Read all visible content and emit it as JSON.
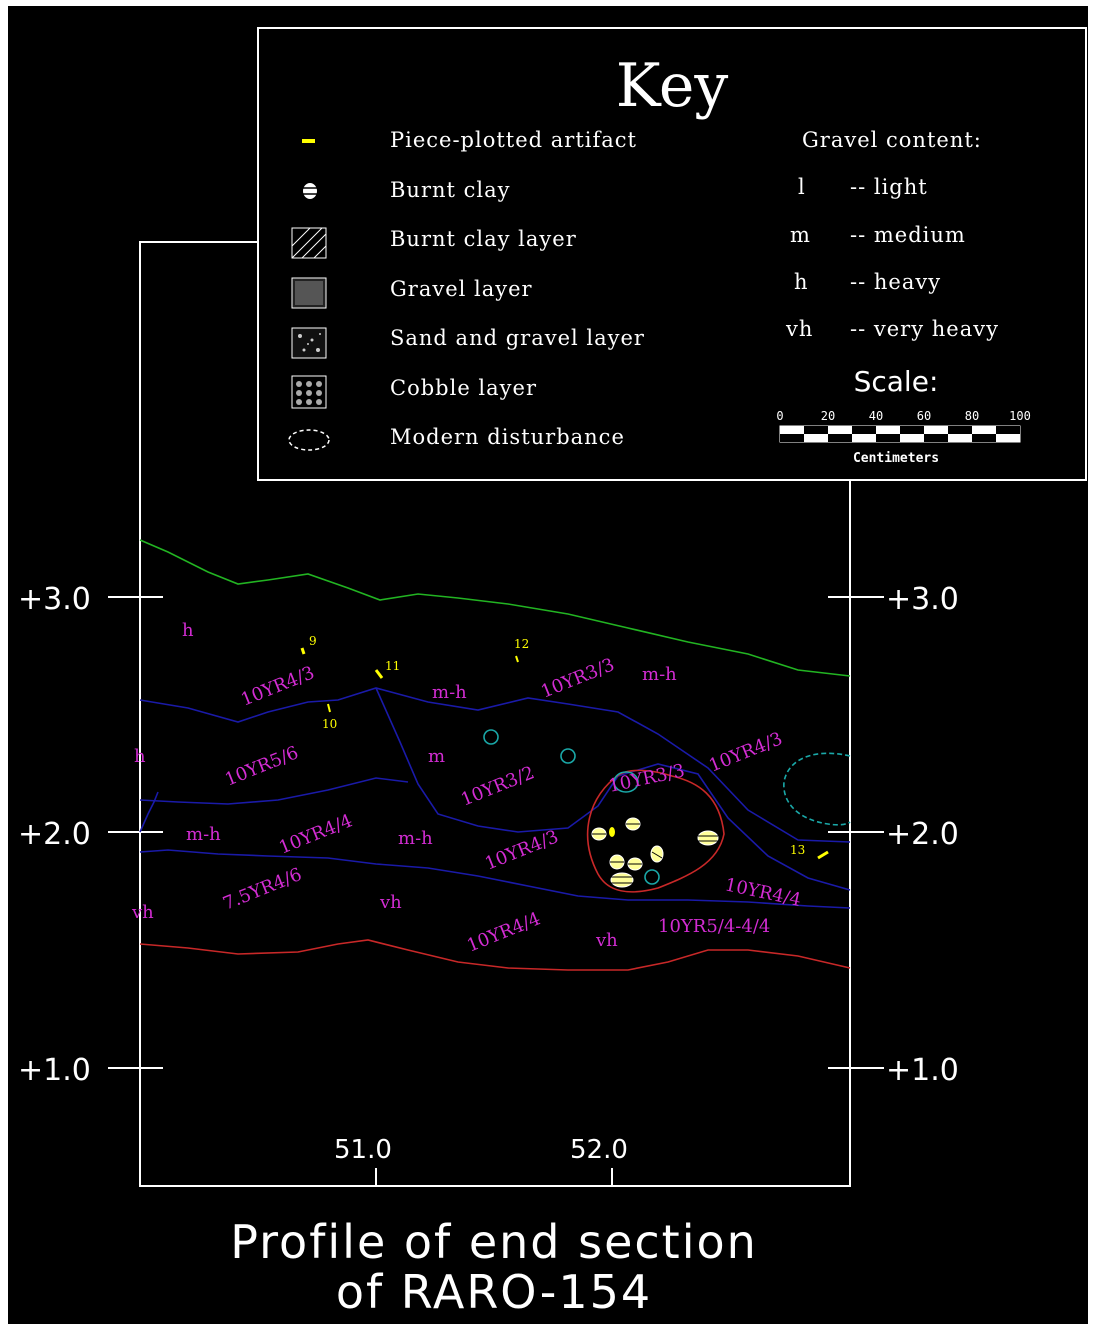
{
  "key": {
    "title": "Key",
    "items": [
      {
        "label": "Piece-plotted artifact",
        "icon": "artifact-dash-icon"
      },
      {
        "label": "Burnt clay",
        "icon": "burnt-clay-icon"
      },
      {
        "label": "Burnt clay layer",
        "icon": "hatched-square-icon"
      },
      {
        "label": "Gravel layer",
        "icon": "stippled-square-icon"
      },
      {
        "label": "Sand and gravel layer",
        "icon": "speckled-square-icon"
      },
      {
        "label": "Cobble layer",
        "icon": "cobble-square-icon"
      },
      {
        "label": "Modern disturbance",
        "icon": "dashed-oval-icon"
      }
    ],
    "gravel_title": "Gravel content:",
    "gravel": [
      {
        "code": "l",
        "desc": "-- light"
      },
      {
        "code": "m",
        "desc": "-- medium"
      },
      {
        "code": "h",
        "desc": "-- heavy"
      },
      {
        "code": "vh",
        "desc": "-- very heavy"
      }
    ],
    "scale": {
      "title": "Scale:",
      "ticks": [
        "0",
        "20",
        "40",
        "60",
        "80",
        "100"
      ],
      "unit": "Centimeters"
    }
  },
  "axes": {
    "y_left": [
      "+3.0",
      "+2.0",
      "+1.0"
    ],
    "y_right": [
      "+3.0",
      "+2.0",
      "+1.0"
    ],
    "x": [
      "51.0",
      "52.0"
    ]
  },
  "labels": {
    "munsell": [
      "10YR4/3",
      "10YR3/3",
      "10YR5/6",
      "10YR4/3",
      "10YR3/2",
      "10YR3/3",
      "10YR4/4",
      "10YR4/3",
      "7.5YR4/6",
      "10YR4/4",
      "10YR4/4",
      "10YR5/4-4/4"
    ],
    "gravel": [
      "h",
      "m-h",
      "m-h",
      "h",
      "m",
      "m-h",
      "m-h",
      "vh",
      "vh",
      "vh"
    ],
    "artifacts": [
      "9",
      "11",
      "12",
      "10",
      "13"
    ]
  },
  "title": {
    "line1": "Profile of end section",
    "line2": "of RARO-154"
  },
  "colors": {
    "background": "#000000",
    "line": "#ffffff",
    "green": "#22b422",
    "blue": "#1a1aa8",
    "red": "#c82828",
    "cyan": "#1aa8a8",
    "magenta": "#d22cd2",
    "yellow": "#ffff00"
  }
}
